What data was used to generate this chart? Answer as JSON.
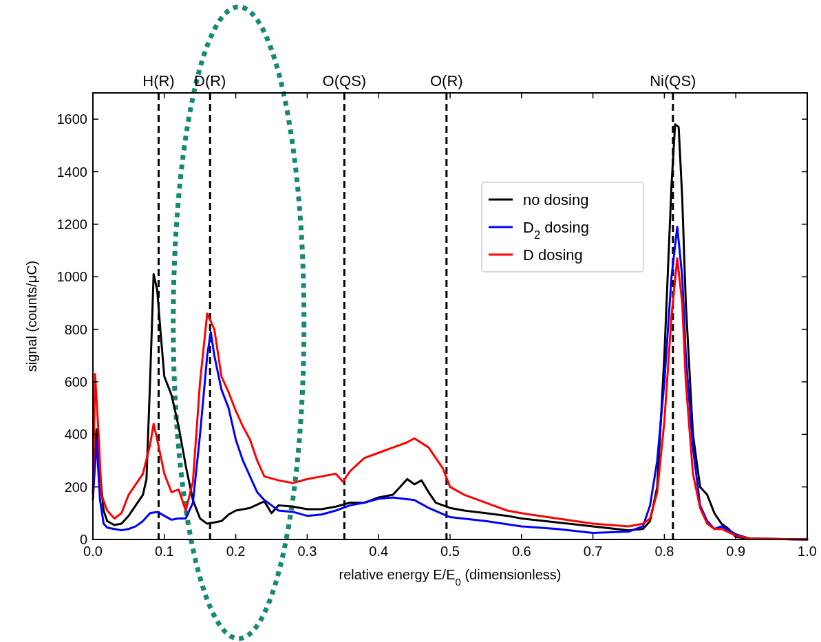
{
  "chart_data": {
    "type": "line",
    "xlabel": "relative energy E/E$_{0}$ (dimensionless)",
    "ylabel": "signal (counts/μC)",
    "xlim": [
      0,
      1
    ],
    "ylim": [
      0,
      1700
    ],
    "xticks": [
      {
        "value": 0,
        "label": "0.0"
      },
      {
        "value": 0.1,
        "label": "0.1"
      },
      {
        "value": 0.2,
        "label": "0.2"
      },
      {
        "value": 0.3,
        "label": "0.3"
      },
      {
        "value": 0.4,
        "label": "0.4"
      },
      {
        "value": 0.5,
        "label": "0.5"
      },
      {
        "value": 0.6,
        "label": "0.6"
      },
      {
        "value": 0.7,
        "label": "0.7"
      },
      {
        "value": 0.8,
        "label": "0.8"
      },
      {
        "value": 0.9,
        "label": "0.9"
      },
      {
        "value": 1,
        "label": "1.0"
      }
    ],
    "yticks": [
      0,
      200,
      400,
      600,
      800,
      1000,
      1200,
      1400,
      1600
    ],
    "legend": "top",
    "grid": false,
    "line_style": "solid",
    "marker": "none",
    "ref_lines": [
      {
        "axis": "x",
        "value": 0.092,
        "label": "H(R)",
        "color": "#000000",
        "line_style": "dashed"
      },
      {
        "axis": "x",
        "value": 0.164,
        "label": "D(R)",
        "color": "#000000",
        "line_style": "dashed"
      },
      {
        "axis": "x",
        "value": 0.352,
        "label": "O(QS)",
        "color": "#000000",
        "line_style": "dashed"
      },
      {
        "axis": "x",
        "value": 0.495,
        "label": "O(R)",
        "color": "#000000",
        "line_style": "dashed"
      },
      {
        "axis": "x",
        "value": 0.812,
        "label": "Ni(QS)",
        "color": "#000000",
        "line_style": "dashed"
      }
    ],
    "series": [
      {
        "name": "no dosing",
        "color": "#000000",
        "x": [
          0,
          0.005,
          0.01,
          0.015,
          0.02,
          0.03,
          0.04,
          0.05,
          0.06,
          0.07,
          0.075,
          0.08,
          0.085,
          0.09,
          0.095,
          0.1,
          0.11,
          0.12,
          0.13,
          0.14,
          0.15,
          0.16,
          0.17,
          0.18,
          0.19,
          0.2,
          0.22,
          0.24,
          0.25,
          0.26,
          0.28,
          0.3,
          0.32,
          0.34,
          0.36,
          0.38,
          0.4,
          0.42,
          0.43,
          0.44,
          0.45,
          0.46,
          0.47,
          0.48,
          0.5,
          0.52,
          0.55,
          0.58,
          0.6,
          0.65,
          0.7,
          0.75,
          0.77,
          0.78,
          0.79,
          0.8,
          0.81,
          0.815,
          0.82,
          0.825,
          0.83,
          0.84,
          0.85,
          0.86,
          0.87,
          0.88,
          0.89,
          0.9,
          0.92,
          1
        ],
        "values": [
          180,
          420,
          250,
          110,
          70,
          55,
          60,
          90,
          130,
          170,
          230,
          600,
          1010,
          950,
          780,
          620,
          550,
          430,
          280,
          150,
          80,
          60,
          65,
          70,
          95,
          110,
          120,
          145,
          100,
          130,
          125,
          115,
          115,
          125,
          140,
          140,
          160,
          170,
          200,
          230,
          210,
          225,
          180,
          140,
          120,
          110,
          100,
          90,
          80,
          65,
          50,
          35,
          40,
          70,
          200,
          700,
          1350,
          1580,
          1570,
          1300,
          900,
          400,
          200,
          170,
          100,
          60,
          40,
          10,
          3,
          0
        ]
      },
      {
        "name": "D$_{2}$ dosing",
        "color": "#0000ff",
        "x": [
          0,
          0.005,
          0.01,
          0.015,
          0.02,
          0.03,
          0.04,
          0.05,
          0.06,
          0.07,
          0.08,
          0.09,
          0.1,
          0.11,
          0.12,
          0.13,
          0.14,
          0.15,
          0.16,
          0.165,
          0.17,
          0.18,
          0.19,
          0.2,
          0.21,
          0.22,
          0.23,
          0.24,
          0.25,
          0.26,
          0.28,
          0.3,
          0.32,
          0.34,
          0.36,
          0.38,
          0.4,
          0.42,
          0.45,
          0.47,
          0.5,
          0.55,
          0.6,
          0.65,
          0.7,
          0.75,
          0.77,
          0.78,
          0.79,
          0.8,
          0.81,
          0.818,
          0.825,
          0.83,
          0.84,
          0.85,
          0.86,
          0.87,
          0.88,
          0.9,
          0.92,
          1
        ],
        "values": [
          150,
          380,
          150,
          60,
          45,
          40,
          35,
          40,
          50,
          70,
          100,
          105,
          90,
          75,
          80,
          80,
          140,
          400,
          700,
          790,
          700,
          570,
          500,
          380,
          300,
          240,
          180,
          150,
          130,
          110,
          105,
          90,
          95,
          110,
          130,
          140,
          155,
          160,
          150,
          120,
          85,
          70,
          50,
          40,
          25,
          30,
          50,
          130,
          300,
          600,
          1000,
          1190,
          1000,
          700,
          350,
          130,
          70,
          40,
          50,
          20,
          3,
          0
        ]
      },
      {
        "name": "D dosing",
        "color": "#ff0000",
        "x": [
          0,
          0.003,
          0.008,
          0.012,
          0.02,
          0.03,
          0.04,
          0.05,
          0.06,
          0.07,
          0.08,
          0.085,
          0.09,
          0.1,
          0.11,
          0.12,
          0.13,
          0.14,
          0.15,
          0.16,
          0.17,
          0.18,
          0.19,
          0.2,
          0.21,
          0.22,
          0.23,
          0.24,
          0.26,
          0.28,
          0.3,
          0.32,
          0.34,
          0.35,
          0.36,
          0.38,
          0.4,
          0.42,
          0.44,
          0.45,
          0.47,
          0.49,
          0.5,
          0.52,
          0.55,
          0.58,
          0.6,
          0.65,
          0.7,
          0.75,
          0.77,
          0.78,
          0.79,
          0.8,
          0.81,
          0.818,
          0.825,
          0.83,
          0.84,
          0.85,
          0.86,
          0.87,
          0.88,
          0.9,
          0.92,
          1
        ],
        "values": [
          170,
          630,
          400,
          170,
          110,
          80,
          100,
          170,
          210,
          250,
          360,
          440,
          380,
          250,
          180,
          190,
          110,
          220,
          600,
          860,
          800,
          620,
          560,
          490,
          430,
          380,
          300,
          240,
          225,
          215,
          230,
          240,
          250,
          220,
          260,
          310,
          330,
          350,
          370,
          385,
          350,
          270,
          200,
          170,
          140,
          110,
          100,
          80,
          60,
          50,
          60,
          80,
          180,
          450,
          850,
          1070,
          900,
          600,
          250,
          120,
          60,
          40,
          40,
          15,
          3,
          0
        ]
      }
    ]
  }
}
